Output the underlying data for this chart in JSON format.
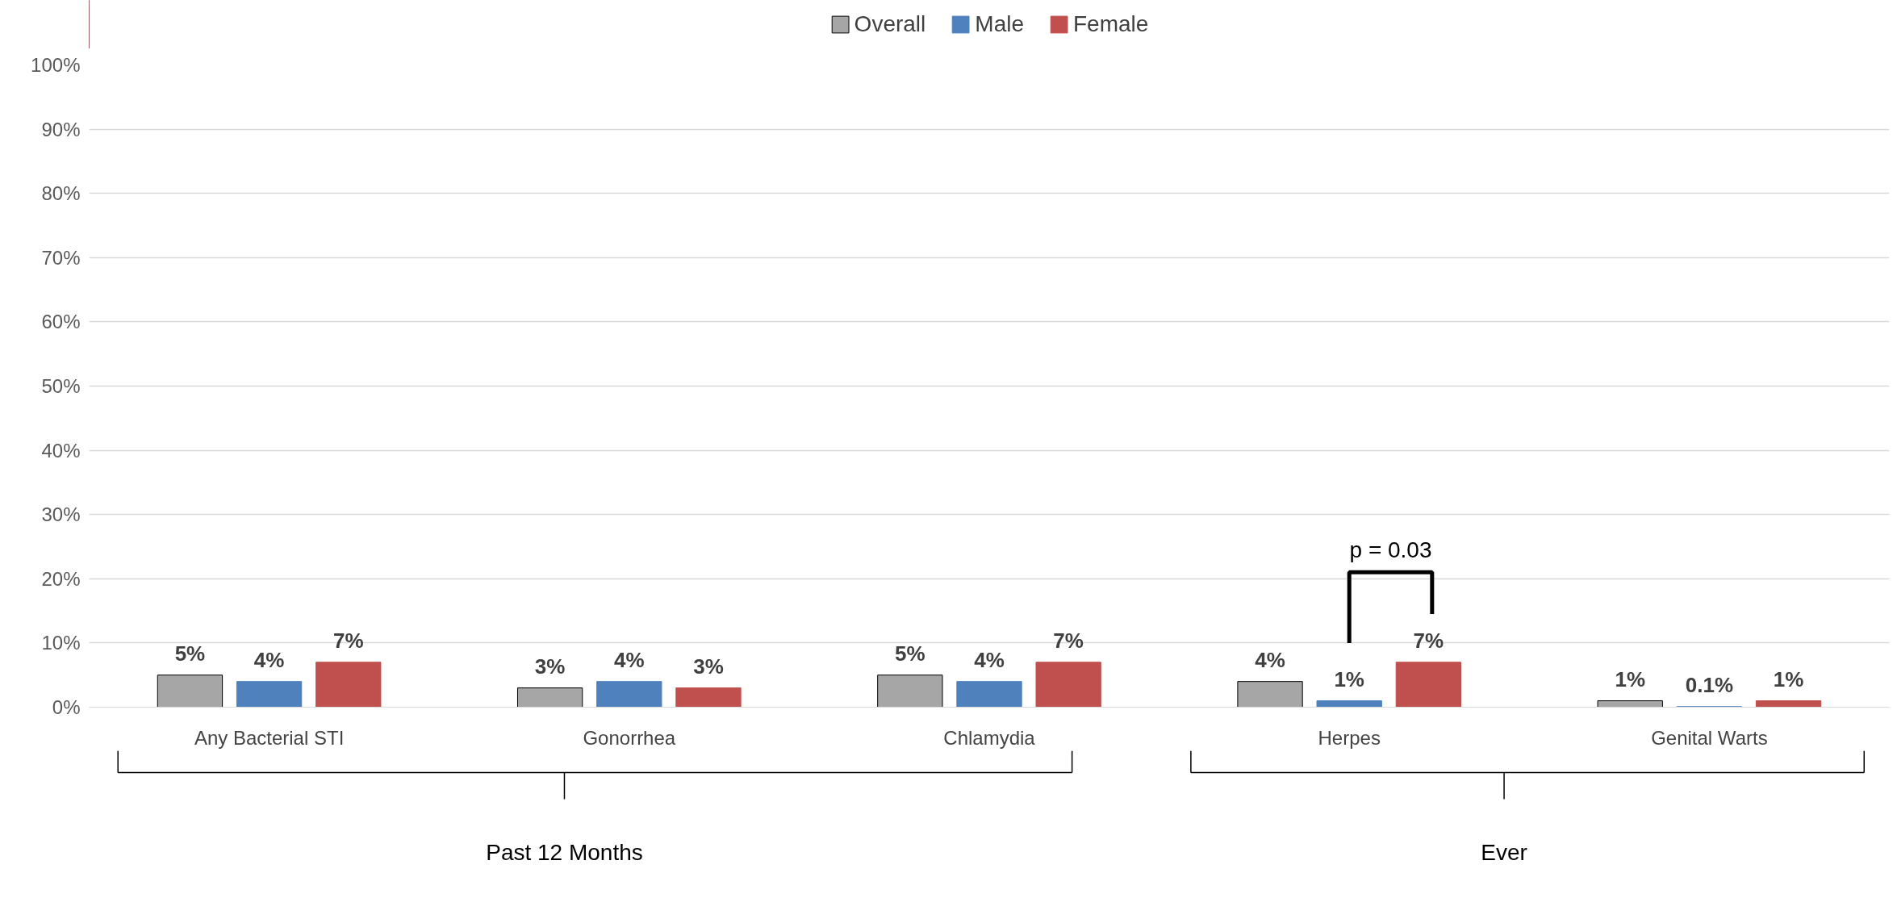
{
  "chart_data": {
    "type": "bar",
    "categories": [
      "Any Bacterial STI",
      "Gonorrhea",
      "Chlamydia",
      "Herpes",
      "Genital Warts"
    ],
    "series": [
      {
        "name": "Overall",
        "color": "#a6a6a6",
        "values": [
          5,
          3,
          5,
          4,
          1
        ],
        "value_labels": [
          "5%",
          "3%",
          "5%",
          "4%",
          "1%"
        ]
      },
      {
        "name": "Male",
        "color": "#4f81bd",
        "values": [
          4,
          4,
          4,
          1,
          0.1
        ],
        "value_labels": [
          "4%",
          "4%",
          "4%",
          "1%",
          "0.1%"
        ]
      },
      {
        "name": "Female",
        "color": "#c0504d",
        "values": [
          7,
          3,
          7,
          7,
          1
        ],
        "value_labels": [
          "7%",
          "3%",
          "7%",
          "7%",
          "1%"
        ]
      }
    ],
    "ylim": [
      0,
      100
    ],
    "yticks": [
      {
        "value": 0,
        "label": "0%"
      },
      {
        "value": 10,
        "label": "10%"
      },
      {
        "value": 20,
        "label": "20%"
      },
      {
        "value": 30,
        "label": "30%"
      },
      {
        "value": 40,
        "label": "40%"
      },
      {
        "value": 50,
        "label": "50%"
      },
      {
        "value": 60,
        "label": "60%"
      },
      {
        "value": 70,
        "label": "70%"
      },
      {
        "value": 80,
        "label": "80%"
      },
      {
        "value": 90,
        "label": "90%"
      },
      {
        "value": 100,
        "label": "100%"
      }
    ],
    "grid": "y",
    "legend": "top",
    "annotations": [
      "Past 12 Months",
      "Ever",
      "p = 0.03"
    ]
  }
}
